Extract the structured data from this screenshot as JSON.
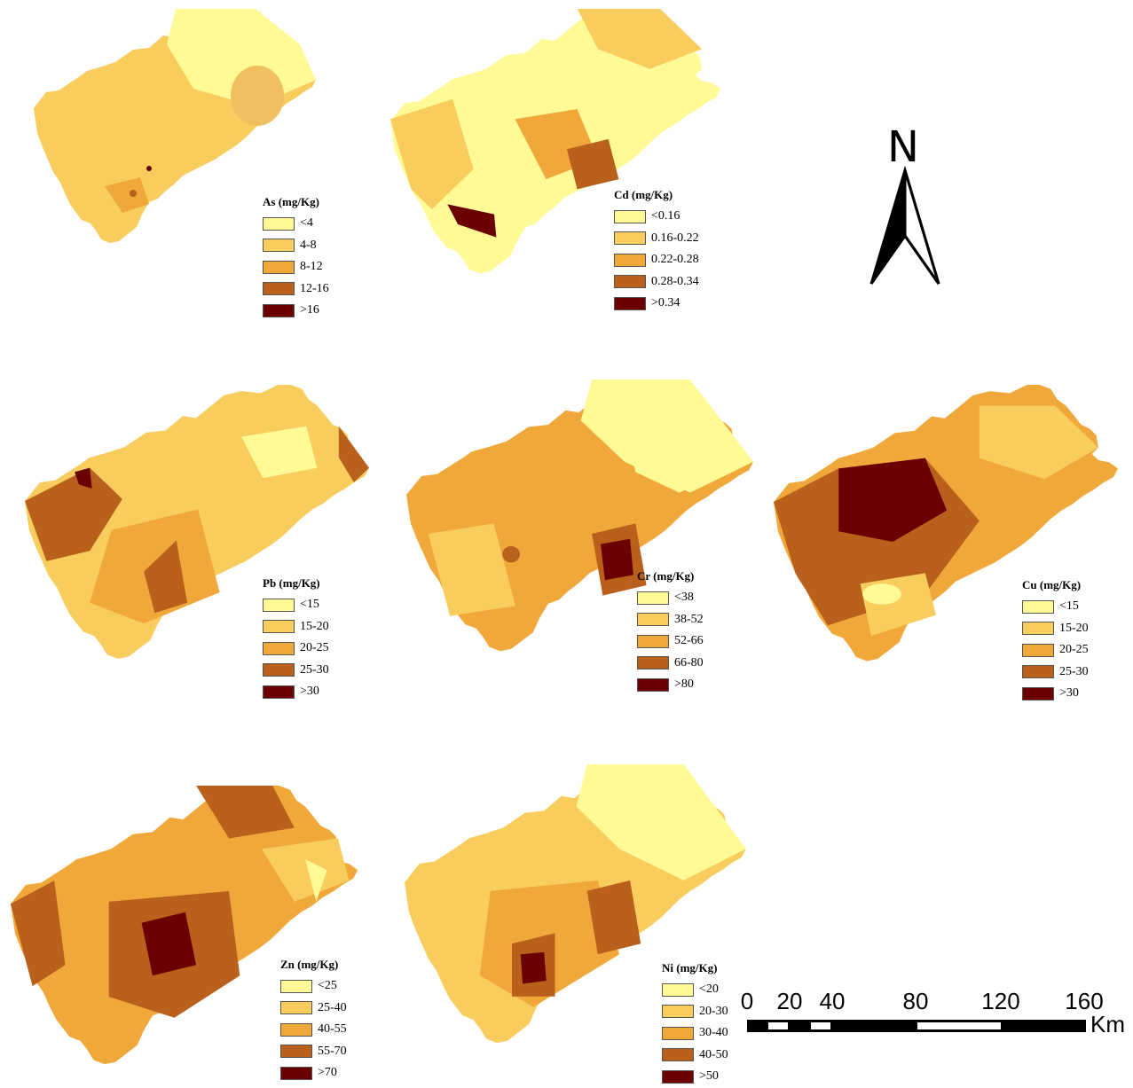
{
  "colors": [
    "#fffa96",
    "#f8cd5e",
    "#f0a83a",
    "#b8601c",
    "#6a0000"
  ],
  "panels": [
    {
      "id": "as",
      "title": "As (mg/Kg)",
      "labels": [
        "<4",
        "4-8",
        "8-12",
        "12-16",
        ">16"
      ]
    },
    {
      "id": "cd",
      "title": "Cd (mg/Kg)",
      "labels": [
        "<0.16",
        "0.16-0.22",
        "0.22-0.28",
        "0.28-0.34",
        ">0.34"
      ]
    },
    {
      "id": "pb",
      "title": "Pb (mg/Kg)",
      "labels": [
        "<15",
        "15-20",
        "20-25",
        "25-30",
        ">30"
      ]
    },
    {
      "id": "cr",
      "title": "Cr (mg/Kg)",
      "labels": [
        "<38",
        "38-52",
        "52-66",
        "66-80",
        ">80"
      ]
    },
    {
      "id": "cu",
      "title": "Cu (mg/Kg)",
      "labels": [
        "<15",
        "15-20",
        "20-25",
        "25-30",
        ">30"
      ]
    },
    {
      "id": "zn",
      "title": "Zn (mg/Kg)",
      "labels": [
        "<25",
        "25-40",
        "40-55",
        "55-70",
        ">70"
      ]
    },
    {
      "id": "ni",
      "title": "Ni (mg/Kg)",
      "labels": [
        "<20",
        "20-30",
        "30-40",
        "40-50",
        ">50"
      ]
    }
  ],
  "north_arrow": {
    "label": "N"
  },
  "scale_bar": {
    "ticks": [
      "0",
      "20",
      "40",
      "80",
      "120",
      "160"
    ],
    "unit": "Km"
  }
}
